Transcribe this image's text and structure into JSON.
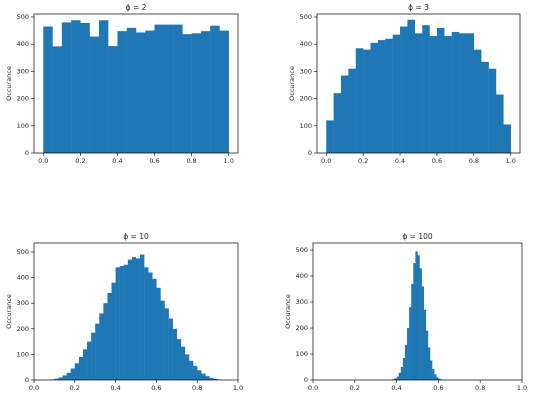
{
  "chart_data": [
    {
      "type": "histogram",
      "title": "ϕ = 2",
      "ylabel": "Occurance",
      "color": "#1f77b4",
      "bins": [
        0,
        0.05,
        0.1,
        0.15,
        0.2,
        0.25,
        0.3,
        0.35,
        0.4,
        0.45,
        0.5,
        0.55,
        0.6,
        0.65,
        0.7,
        0.75,
        0.8,
        0.85,
        0.9,
        0.95,
        1
      ],
      "values": [
        465,
        392,
        480,
        488,
        478,
        428,
        488,
        393,
        448,
        460,
        443,
        450,
        472,
        472,
        472,
        437,
        440,
        448,
        468,
        450
      ],
      "xlim": [
        -0.05,
        1.05
      ],
      "ylim": [
        0,
        511
      ],
      "xticks": [
        {
          "value": 0,
          "label": "0.0"
        },
        {
          "value": 0.2,
          "label": "0.2"
        },
        {
          "value": 0.4,
          "label": "0.4"
        },
        {
          "value": 0.6,
          "label": "0.6"
        },
        {
          "value": 0.8,
          "label": "0.8"
        },
        {
          "value": 1,
          "label": "1.0"
        }
      ],
      "yticks": [
        0,
        100,
        200,
        300,
        400,
        500
      ]
    },
    {
      "type": "histogram",
      "title": "ϕ = 3",
      "ylabel": "Occurance",
      "color": "#1f77b4",
      "bins": [
        0,
        0.04,
        0.08,
        0.12,
        0.16,
        0.2,
        0.24,
        0.28,
        0.32,
        0.36,
        0.4,
        0.44,
        0.48,
        0.52,
        0.56,
        0.6,
        0.64,
        0.68,
        0.72,
        0.76,
        0.8,
        0.84,
        0.88,
        0.92,
        0.96,
        1
      ],
      "values": [
        120,
        220,
        285,
        310,
        385,
        380,
        405,
        415,
        420,
        435,
        465,
        490,
        440,
        470,
        430,
        460,
        430,
        445,
        440,
        440,
        380,
        335,
        310,
        215,
        105
      ],
      "xlim": [
        -0.05,
        1.05
      ],
      "ylim": [
        0,
        511
      ],
      "xticks": [
        {
          "value": 0,
          "label": "0.0"
        },
        {
          "value": 0.2,
          "label": "0.2"
        },
        {
          "value": 0.4,
          "label": "0.4"
        },
        {
          "value": 0.6,
          "label": "0.6"
        },
        {
          "value": 0.8,
          "label": "0.8"
        },
        {
          "value": 1,
          "label": "1.0"
        }
      ],
      "yticks": [
        0,
        100,
        200,
        300,
        400,
        500
      ]
    },
    {
      "type": "histogram",
      "title": "ϕ = 10",
      "ylabel": "Occurance",
      "color": "#1f77b4",
      "bins": [
        0.08,
        0.1,
        0.12,
        0.14,
        0.16,
        0.18,
        0.2,
        0.22,
        0.24,
        0.26,
        0.28,
        0.3,
        0.32,
        0.34,
        0.36,
        0.38,
        0.4,
        0.42,
        0.44,
        0.46,
        0.48,
        0.5,
        0.52,
        0.54,
        0.56,
        0.58,
        0.6,
        0.62,
        0.64,
        0.66,
        0.68,
        0.7,
        0.72,
        0.74,
        0.76,
        0.78,
        0.8,
        0.82,
        0.84,
        0.86,
        0.88,
        0.9,
        0.92
      ],
      "values": [
        2,
        5,
        10,
        18,
        28,
        45,
        65,
        90,
        120,
        150,
        185,
        220,
        260,
        300,
        340,
        380,
        440,
        445,
        450,
        470,
        480,
        475,
        490,
        440,
        420,
        395,
        360,
        310,
        280,
        240,
        200,
        160,
        130,
        100,
        75,
        55,
        38,
        25,
        15,
        8,
        4,
        2
      ],
      "xlim": [
        0,
        1
      ],
      "ylim": [
        0,
        535
      ],
      "xticks": [
        {
          "value": 0,
          "label": "0.0"
        },
        {
          "value": 0.2,
          "label": "0.2"
        },
        {
          "value": 0.4,
          "label": "0.4"
        },
        {
          "value": 0.6,
          "label": "0.6"
        },
        {
          "value": 0.8,
          "label": "0.8"
        },
        {
          "value": 1,
          "label": "1.0"
        }
      ],
      "yticks": [
        0,
        100,
        200,
        300,
        400,
        500
      ]
    },
    {
      "type": "histogram",
      "title": "ϕ = 100",
      "ylabel": "Occurance",
      "color": "#1f77b4",
      "bins": [
        0.37,
        0.38,
        0.39,
        0.4,
        0.41,
        0.42,
        0.43,
        0.44,
        0.45,
        0.46,
        0.47,
        0.48,
        0.49,
        0.5,
        0.51,
        0.52,
        0.53,
        0.54,
        0.55,
        0.56,
        0.57,
        0.58,
        0.59,
        0.6,
        0.61,
        0.62,
        0.63
      ],
      "values": [
        1,
        3,
        6,
        13,
        27,
        50,
        85,
        135,
        200,
        280,
        370,
        450,
        495,
        480,
        430,
        360,
        270,
        190,
        125,
        75,
        42,
        22,
        10,
        5,
        2,
        1
      ],
      "xlim": [
        0,
        1
      ],
      "ylim": [
        0,
        527
      ],
      "xticks": [
        {
          "value": 0,
          "label": "0.0"
        },
        {
          "value": 0.2,
          "label": "0.2"
        },
        {
          "value": 0.4,
          "label": "0.4"
        },
        {
          "value": 0.6,
          "label": "0.6"
        },
        {
          "value": 0.8,
          "label": "0.8"
        },
        {
          "value": 1,
          "label": "1.0"
        }
      ],
      "yticks": [
        0,
        100,
        200,
        300,
        400,
        500
      ]
    }
  ]
}
